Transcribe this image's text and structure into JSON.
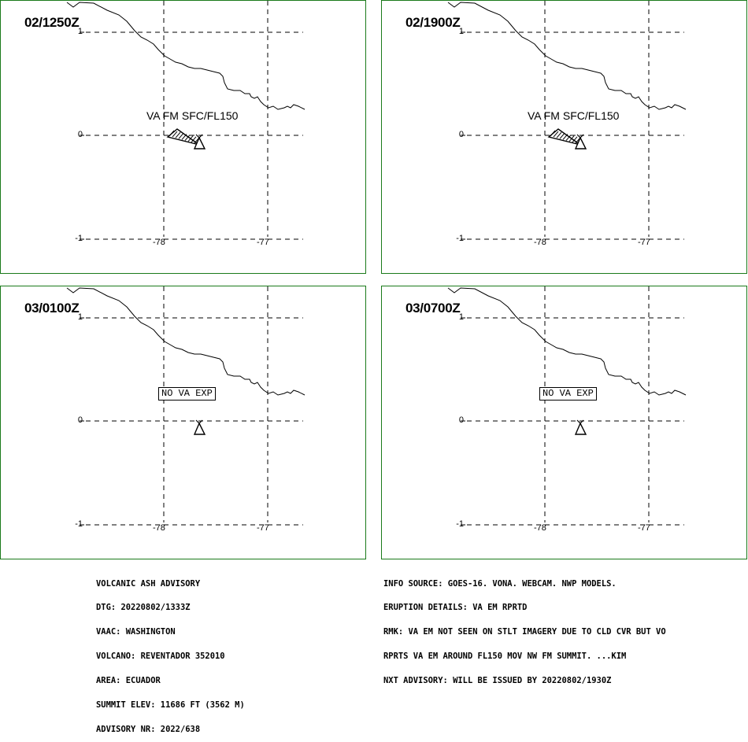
{
  "panels": [
    {
      "time": "02/1250Z",
      "label_type": "ash",
      "ash_label": "VA FM SFC/FL150",
      "y_ticks": [
        "1",
        "0",
        "-1"
      ],
      "x_ticks": [
        "-78",
        "-77"
      ]
    },
    {
      "time": "02/1900Z",
      "label_type": "ash",
      "ash_label": "VA FM SFC/FL150",
      "y_ticks": [
        "1",
        "0",
        "-1"
      ],
      "x_ticks": [
        "-78",
        "-77"
      ]
    },
    {
      "time": "03/0100Z",
      "label_type": "noexp",
      "ash_label": "NO VA EXP",
      "y_ticks": [
        "1",
        "0",
        "-1"
      ],
      "x_ticks": [
        "-78",
        "-77"
      ]
    },
    {
      "time": "03/0700Z",
      "label_type": "noexp",
      "ash_label": "NO VA EXP",
      "y_ticks": [
        "1",
        "0",
        "-1"
      ],
      "x_ticks": [
        "-78",
        "-77"
      ]
    }
  ],
  "advisory_left": [
    "VOLCANIC ASH ADVISORY",
    "DTG: 20220802/1333Z",
    "VAAC: WASHINGTON",
    "VOLCANO: REVENTADOR 352010",
    "AREA: ECUADOR",
    "SUMMIT ELEV: 11686 FT (3562 M)",
    "ADVISORY NR: 2022/638"
  ],
  "advisory_right": [
    "INFO SOURCE: GOES-16. VONA. WEBCAM. NWP MODELS.",
    "ERUPTION DETAILS: VA EM RPRTD",
    "RMK: VA EM NOT SEEN ON STLT IMAGERY DUE TO CLD CVR BUT VO",
    "RPRTS VA EM AROUND FL150 MOV NW FM SUMMIT. ...KIM",
    "NXT ADVISORY: WILL BE ISSUED BY 20220802/1930Z"
  ],
  "colors": {
    "panel_border": "#1a7a1a",
    "map_lines": "#000000",
    "background": "#ffffff"
  },
  "icons": {
    "volcano": "volcano-triangle-icon",
    "ash_cloud": "ash-cloud-polygon"
  }
}
